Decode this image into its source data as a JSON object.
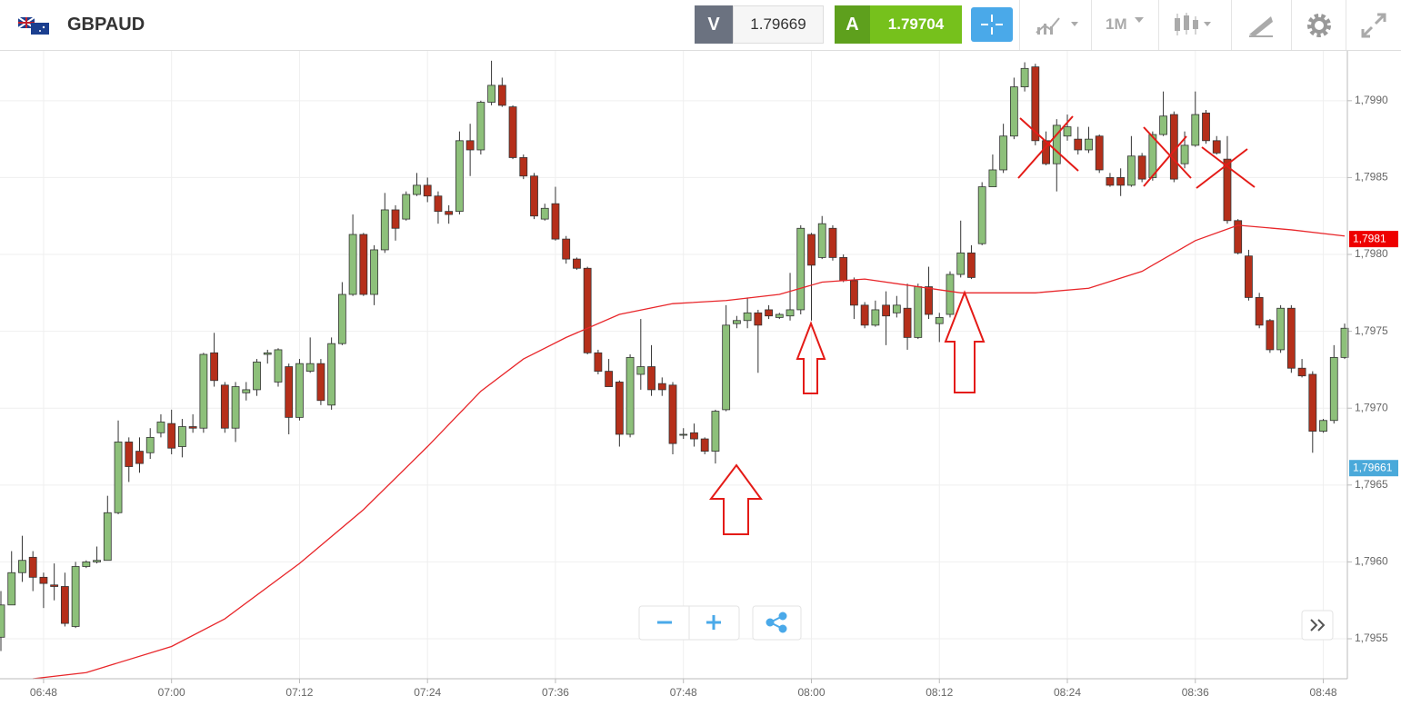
{
  "toolbar": {
    "symbol": "GBPAUD",
    "bid_label": "V",
    "bid": 1.79669,
    "ask_label": "A",
    "ask": 1.79704,
    "timeframe": "1M"
  },
  "chart_data": {
    "type": "candlestick",
    "up_color": "#8dc07a",
    "down_color": "#b52f1a",
    "grid": true,
    "x": [
      "06:44",
      "06:45",
      "06:46",
      "06:47",
      "06:48",
      "06:49",
      "06:50",
      "06:51",
      "06:52",
      "06:53",
      "06:54",
      "06:55",
      "06:56",
      "06:57",
      "06:58",
      "06:59",
      "07:00",
      "07:01",
      "07:02",
      "07:03",
      "07:04",
      "07:05",
      "07:06",
      "07:07",
      "07:08",
      "07:09",
      "07:10",
      "07:11",
      "07:12",
      "07:13",
      "07:14",
      "07:15",
      "07:16",
      "07:17",
      "07:18",
      "07:19",
      "07:20",
      "07:21",
      "07:22",
      "07:23",
      "07:24",
      "07:25",
      "07:26",
      "07:27",
      "07:28",
      "07:29",
      "07:30",
      "07:31",
      "07:32",
      "07:33",
      "07:34",
      "07:35",
      "07:36",
      "07:37",
      "07:38",
      "07:39",
      "07:40",
      "07:41",
      "07:42",
      "07:43",
      "07:44",
      "07:45",
      "07:46",
      "07:47",
      "07:48",
      "07:49",
      "07:50",
      "07:51",
      "07:52",
      "07:53",
      "07:54",
      "07:55",
      "07:56",
      "07:57",
      "07:58",
      "07:59",
      "08:00",
      "08:01",
      "08:02",
      "08:03",
      "08:04",
      "08:05",
      "08:06",
      "08:07",
      "08:08",
      "08:09",
      "08:10",
      "08:11",
      "08:12",
      "08:13",
      "08:14",
      "08:15",
      "08:16",
      "08:17",
      "08:18",
      "08:19",
      "08:20",
      "08:21",
      "08:22",
      "08:23",
      "08:24",
      "08:25",
      "08:26",
      "08:27",
      "08:28",
      "08:29",
      "08:30",
      "08:31",
      "08:32",
      "08:33",
      "08:34",
      "08:35",
      "08:36",
      "08:37",
      "08:38",
      "08:39",
      "08:40",
      "08:41",
      "08:42",
      "08:43",
      "08:44",
      "08:45",
      "08:46",
      "08:47",
      "08:48",
      "08:49",
      "08:50"
    ],
    "open": [
      1.79551,
      1.79572,
      1.79593,
      1.79603,
      1.7959,
      1.79585,
      1.79584,
      1.79558,
      1.79597,
      1.796,
      1.79601,
      1.79632,
      1.79678,
      1.79672,
      1.79671,
      1.79684,
      1.7969,
      1.79675,
      1.79688,
      1.79687,
      1.79736,
      1.79715,
      1.79687,
      1.7971,
      1.79712,
      1.79735,
      1.79717,
      1.79727,
      1.79694,
      1.79724,
      1.79729,
      1.79702,
      1.79742,
      1.79774,
      1.79813,
      1.79774,
      1.79803,
      1.79829,
      1.79823,
      1.79839,
      1.79845,
      1.79838,
      1.79828,
      1.79828,
      1.79874,
      1.79868,
      1.79899,
      1.7991,
      1.79896,
      1.79863,
      1.79851,
      1.79823,
      1.79833,
      1.7981,
      1.79797,
      1.79791,
      1.79736,
      1.79724,
      1.79717,
      1.79683,
      1.79722,
      1.79727,
      1.79716,
      1.79715,
      1.79683,
      1.79684,
      1.7968,
      1.79672,
      1.79699,
      1.79755,
      1.79757,
      1.79762,
      1.79764,
      1.79759,
      1.7976,
      1.79764,
      1.79813,
      1.79798,
      1.79817,
      1.79798,
      1.79783,
      1.79767,
      1.79754,
      1.79767,
      1.79762,
      1.79765,
      1.79746,
      1.79779,
      1.79755,
      1.79761,
      1.79787,
      1.79801,
      1.79807,
      1.79844,
      1.79855,
      1.79877,
      1.79909,
      1.79922,
      1.79874,
      1.79859,
      1.79877,
      1.79875,
      1.79868,
      1.79877,
      1.7985,
      1.7985,
      1.79845,
      1.79864,
      1.7985,
      1.79878,
      1.79891,
      1.79859,
      1.79871,
      1.79892,
      1.79874,
      1.79862,
      1.79822,
      1.79799,
      1.79772,
      1.79757,
      1.79738,
      1.79765,
      1.79726,
      1.79722,
      1.79685,
      1.79692,
      1.79733
    ],
    "high": [
      1.79581,
      1.79607,
      1.79617,
      1.79607,
      1.79593,
      1.79599,
      1.79593,
      1.796,
      1.79601,
      1.7961,
      1.79643,
      1.79692,
      1.79681,
      1.79681,
      1.79687,
      1.79696,
      1.79699,
      1.79693,
      1.79696,
      1.79736,
      1.79749,
      1.79717,
      1.79717,
      1.79717,
      1.79732,
      1.79738,
      1.79739,
      1.79729,
      1.79732,
      1.79746,
      1.79732,
      1.79746,
      1.79782,
      1.79826,
      1.79814,
      1.79806,
      1.7984,
      1.79832,
      1.79841,
      1.79853,
      1.7985,
      1.79841,
      1.79832,
      1.7988,
      1.79885,
      1.799,
      1.79926,
      1.79915,
      1.79897,
      1.79865,
      1.79853,
      1.79833,
      1.79844,
      1.79812,
      1.79798,
      1.79792,
      1.79738,
      1.79732,
      1.79718,
      1.79735,
      1.79758,
      1.79741,
      1.7972,
      1.79717,
      1.79687,
      1.7969,
      1.79681,
      1.79699,
      1.79767,
      1.7976,
      1.79772,
      1.79764,
      1.79767,
      1.79762,
      1.79788,
      1.79819,
      1.79814,
      1.79825,
      1.79819,
      1.798,
      1.79785,
      1.79769,
      1.7977,
      1.79776,
      1.79773,
      1.79781,
      1.79781,
      1.79792,
      1.79762,
      1.79789,
      1.79822,
      1.79806,
      1.79847,
      1.79865,
      1.79885,
      1.79915,
      1.79925,
      1.79924,
      1.7988,
      1.79888,
      1.79891,
      1.79883,
      1.79883,
      1.79878,
      1.79853,
      1.79856,
      1.79877,
      1.79866,
      1.7988,
      1.79906,
      1.79893,
      1.7988,
      1.79906,
      1.79894,
      1.79877,
      1.79877,
      1.79823,
      1.79803,
      1.79775,
      1.79758,
      1.79767,
      1.79767,
      1.79732,
      1.79724,
      1.79693,
      1.79741,
      1.79755
    ],
    "low": [
      1.79542,
      1.79572,
      1.79587,
      1.79581,
      1.7957,
      1.79575,
      1.79558,
      1.79557,
      1.79596,
      1.79599,
      1.79601,
      1.79631,
      1.79652,
      1.79658,
      1.79667,
      1.79681,
      1.7967,
      1.79668,
      1.79684,
      1.79684,
      1.79714,
      1.79684,
      1.79678,
      1.79705,
      1.79708,
      1.79729,
      1.79714,
      1.79683,
      1.79692,
      1.79723,
      1.79702,
      1.79699,
      1.79741,
      1.79773,
      1.79773,
      1.79767,
      1.79801,
      1.79809,
      1.79822,
      1.79838,
      1.79834,
      1.7982,
      1.7982,
      1.79826,
      1.79851,
      1.79865,
      1.79897,
      1.79896,
      1.79862,
      1.79849,
      1.79823,
      1.79822,
      1.79809,
      1.79794,
      1.7979,
      1.79735,
      1.79722,
      1.79714,
      1.79675,
      1.79681,
      1.79712,
      1.79708,
      1.79708,
      1.7967,
      1.7968,
      1.79675,
      1.7967,
      1.79664,
      1.79698,
      1.79752,
      1.79752,
      1.79723,
      1.79758,
      1.79758,
      1.79757,
      1.79761,
      1.79757,
      1.79797,
      1.79796,
      1.79782,
      1.79758,
      1.79752,
      1.79753,
      1.79741,
      1.79759,
      1.79738,
      1.79745,
      1.79758,
      1.79743,
      1.79759,
      1.79785,
      1.79784,
      1.79806,
      1.79844,
      1.79853,
      1.79875,
      1.79906,
      1.79871,
      1.79858,
      1.79841,
      1.79874,
      1.79865,
      1.79866,
      1.79853,
      1.79844,
      1.79838,
      1.79844,
      1.79847,
      1.79848,
      1.79877,
      1.79847,
      1.79856,
      1.7987,
      1.79872,
      1.79865,
      1.7982,
      1.798,
      1.7977,
      1.79752,
      1.79736,
      1.79736,
      1.79723,
      1.7972,
      1.79671,
      1.79684,
      1.7969,
      1.79732
    ],
    "close": [
      1.79572,
      1.79593,
      1.79601,
      1.7959,
      1.79586,
      1.79584,
      1.7956,
      1.79597,
      1.796,
      1.79601,
      1.79632,
      1.79678,
      1.79662,
      1.79664,
      1.79681,
      1.79691,
      1.79674,
      1.79688,
      1.79687,
      1.79735,
      1.79718,
      1.79687,
      1.79714,
      1.79712,
      1.7973,
      1.79736,
      1.79738,
      1.79694,
      1.79729,
      1.79729,
      1.79705,
      1.79742,
      1.79774,
      1.79813,
      1.79774,
      1.79803,
      1.79829,
      1.79817,
      1.79839,
      1.79845,
      1.79838,
      1.79828,
      1.79826,
      1.79874,
      1.79868,
      1.79899,
      1.7991,
      1.79897,
      1.79863,
      1.79851,
      1.79825,
      1.7983,
      1.7981,
      1.79797,
      1.79791,
      1.79736,
      1.79724,
      1.79714,
      1.79683,
      1.79733,
      1.79727,
      1.79712,
      1.79712,
      1.79677,
      1.79683,
      1.7968,
      1.79672,
      1.79698,
      1.79754,
      1.79757,
      1.79762,
      1.79754,
      1.7976,
      1.79761,
      1.79764,
      1.79817,
      1.79793,
      1.7982,
      1.79798,
      1.79783,
      1.79767,
      1.79754,
      1.79764,
      1.7976,
      1.79767,
      1.79746,
      1.79779,
      1.79761,
      1.79759,
      1.79787,
      1.79801,
      1.79785,
      1.79844,
      1.79855,
      1.79877,
      1.79909,
      1.79921,
      1.79874,
      1.79859,
      1.79884,
      1.79883,
      1.79868,
      1.79875,
      1.79855,
      1.79845,
      1.79845,
      1.79864,
      1.79849,
      1.79878,
      1.7989,
      1.79849,
      1.79871,
      1.79891,
      1.79874,
      1.79866,
      1.79822,
      1.79801,
      1.79772,
      1.79754,
      1.79738,
      1.79765,
      1.79726,
      1.79721,
      1.79685,
      1.79692,
      1.79733,
      1.79752
    ],
    "moving_average": {
      "color": "#e8262a",
      "x": [
        "06:47",
        "06:52",
        "07:00",
        "07:05",
        "07:12",
        "07:18",
        "07:24",
        "07:29",
        "07:33",
        "07:37",
        "07:42",
        "07:47",
        "07:52",
        "07:57",
        "08:01",
        "08:05",
        "08:10",
        "08:14",
        "08:21",
        "08:26",
        "08:31",
        "08:36",
        "08:40",
        "08:45",
        "08:50"
      ],
      "values": [
        1.79524,
        1.79528,
        1.79545,
        1.79563,
        1.79599,
        1.79634,
        1.79675,
        1.79711,
        1.79732,
        1.79746,
        1.79761,
        1.79768,
        1.7977,
        1.79774,
        1.79782,
        1.79784,
        1.79779,
        1.79775,
        1.79775,
        1.79778,
        1.79789,
        1.79809,
        1.79819,
        1.79816,
        1.79812
      ]
    },
    "price_markers": [
      {
        "value": 1.7981,
        "label": "1,7981",
        "color": "#ee0000"
      },
      {
        "value": 1.79661,
        "label": "1,79661",
        "color": "#4aa9da"
      }
    ],
    "xlim": [
      "06:44",
      "08:50"
    ],
    "xticks": [
      "06:48",
      "07:00",
      "07:12",
      "07:24",
      "07:36",
      "07:48",
      "08:00",
      "08:12",
      "08:24",
      "08:36",
      "08:48"
    ],
    "ylim": [
      1.79524,
      1.79933
    ],
    "yticks": [
      {
        "value": 1.7955,
        "label": "1,7955"
      },
      {
        "value": 1.796,
        "label": "1,7960"
      },
      {
        "value": 1.7965,
        "label": "1,7965"
      },
      {
        "value": 1.797,
        "label": "1,7970"
      },
      {
        "value": 1.7975,
        "label": "1,7975"
      },
      {
        "value": 1.798,
        "label": "1,7980"
      },
      {
        "value": 1.7985,
        "label": "1,7985"
      },
      {
        "value": 1.799,
        "label": "1,7990"
      }
    ]
  }
}
